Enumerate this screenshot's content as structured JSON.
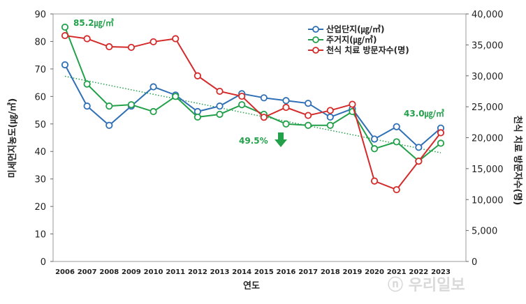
{
  "chart_data": {
    "type": "line",
    "x": [
      "2006",
      "2007",
      "2008",
      "2009",
      "2010",
      "2011",
      "2012",
      "2013",
      "2014",
      "2015",
      "2016",
      "2017",
      "2018",
      "2019",
      "2020",
      "2021",
      "2022",
      "2023"
    ],
    "xlabel": "연도",
    "ylabel_left": "미세먼지농도(㎍/㎥)",
    "ylabel_right": "천식 치료 방문자수(명)",
    "ylim_left": [
      0,
      90
    ],
    "yticks_left": [
      "0",
      "10",
      "20",
      "30",
      "40",
      "50",
      "60",
      "70",
      "80",
      "90"
    ],
    "ylim_right": [
      0,
      40000
    ],
    "yticks_right": [
      "0",
      "5,000",
      "10,000",
      "15,000",
      "20,000",
      "25,000",
      "30,000",
      "35,000",
      "40,000"
    ],
    "series": [
      {
        "name": "산업단지(㎍/㎥)",
        "axis": "left",
        "color": "#2e6fb5",
        "values": [
          71.5,
          56.5,
          49.5,
          56.5,
          63.5,
          60.5,
          54.5,
          56.5,
          61.0,
          59.5,
          58.5,
          57.5,
          52.5,
          55.5,
          44.5,
          49.0,
          41.5,
          48.5
        ]
      },
      {
        "name": "주거지(㎍/㎥)",
        "axis": "left",
        "color": "#22a04a",
        "values": [
          85.2,
          64.5,
          56.5,
          57.0,
          54.5,
          60.0,
          52.5,
          53.5,
          57.0,
          53.5,
          50.0,
          49.5,
          49.5,
          54.5,
          41.0,
          43.5,
          36.5,
          43.0
        ]
      },
      {
        "name": "천식 치료 방문자수(명)",
        "axis": "right",
        "color": "#d42a2a",
        "values": [
          36500,
          36000,
          34700,
          34600,
          35500,
          36000,
          30000,
          27500,
          26700,
          23300,
          24900,
          23600,
          24400,
          25400,
          13000,
          11600,
          16200,
          20800
        ]
      }
    ],
    "trendline": {
      "series": "주거지(㎍/㎥)",
      "color": "#22a04a",
      "style": "dotted"
    },
    "grid": false,
    "legend": "top-right",
    "annotations": [
      {
        "text": "85.2㎍/㎥",
        "color": "#22a04a"
      },
      {
        "text": "43.0㎍/㎥",
        "color": "#22a04a"
      },
      {
        "text": "49.5%",
        "color": "#22a04a",
        "arrow": "down"
      }
    ],
    "watermark": "ⓝ 우리일보"
  }
}
